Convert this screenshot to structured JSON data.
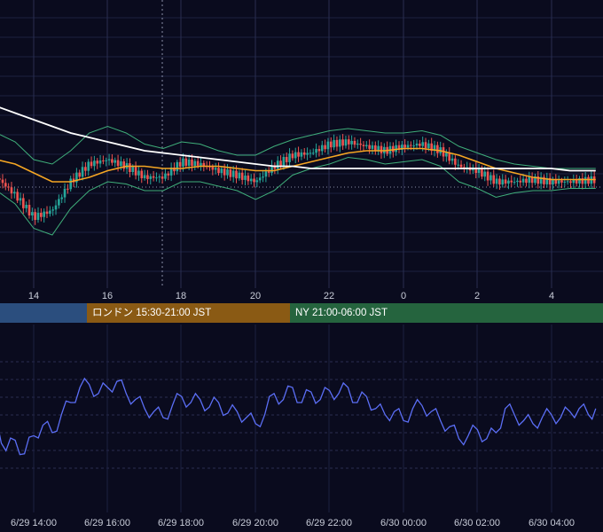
{
  "colors": {
    "background": "#0a0b1e",
    "grid": "#1c2040",
    "up_candle": "#26a69a",
    "down_candle": "#ef5350",
    "sma_long": "#ffffff",
    "sma_mid": "#f5a623",
    "bollinger": "#3fae7a",
    "oscillator": "#5b6ef5",
    "crosshair": "#8a8fa8"
  },
  "sessions": [
    {
      "label": "",
      "color": "#2b4e7e"
    },
    {
      "label": "ロンドン 15:30-21:00 JST",
      "color": "#8a5a14"
    },
    {
      "label": "NY 21:00-06:00 JST",
      "color": "#25643e"
    }
  ],
  "time_axis_top": [
    "14",
    "16",
    "18",
    "20",
    "22",
    "0",
    "2",
    "4"
  ],
  "time_axis_bottom": [
    "6/29 14:00",
    "6/29 16:00",
    "6/29 18:00",
    "6/29 20:00",
    "6/29 22:00",
    "6/30 00:00",
    "6/30 02:00",
    "6/30 04:00"
  ],
  "chart_data": [
    {
      "type": "line",
      "x_hours": [
        13,
        13.5,
        14,
        14.5,
        15,
        15.5,
        16,
        16.5,
        17,
        17.5,
        18,
        18.5,
        19,
        19.5,
        20,
        20.5,
        21,
        21.5,
        22,
        22.5,
        23,
        23.5,
        24,
        24.5,
        25,
        25.5,
        26,
        26.5,
        27,
        27.5,
        28,
        28.5,
        29.2
      ],
      "series": [
        {
          "kind": "close",
          "values": [
            50,
            42,
            32,
            35,
            48,
            56,
            58,
            55,
            50,
            50,
            57,
            56,
            53,
            51,
            48,
            55,
            60,
            61,
            65,
            66,
            64,
            62,
            64,
            65,
            62,
            55,
            53,
            48,
            48,
            49,
            48,
            48,
            49
          ]
        },
        {
          "kind": "sma_long",
          "values": [
            82,
            79,
            76,
            73,
            70,
            68,
            66,
            64,
            62,
            61,
            60,
            59,
            58,
            57,
            56,
            55,
            55,
            54,
            54,
            54,
            54,
            54,
            54,
            54,
            54,
            54,
            54,
            54,
            54,
            54,
            54,
            53,
            53
          ]
        },
        {
          "kind": "sma_mid",
          "values": [
            58,
            56,
            52,
            48,
            48,
            50,
            53,
            55,
            55,
            54,
            54,
            55,
            55,
            54,
            53,
            53,
            55,
            57,
            59,
            61,
            62,
            62,
            63,
            63,
            62,
            60,
            57,
            54,
            52,
            50,
            49,
            49,
            49
          ]
        },
        {
          "kind": "bb_upper",
          "values": [
            70,
            66,
            58,
            56,
            62,
            70,
            73,
            70,
            65,
            63,
            66,
            65,
            62,
            60,
            60,
            64,
            67,
            69,
            71,
            72,
            71,
            70,
            70,
            71,
            69,
            64,
            61,
            58,
            56,
            55,
            54,
            54,
            54
          ]
        },
        {
          "kind": "bb_lower",
          "values": [
            44,
            38,
            27,
            24,
            36,
            44,
            48,
            47,
            44,
            44,
            48,
            48,
            46,
            44,
            40,
            44,
            51,
            54,
            56,
            59,
            58,
            56,
            57,
            58,
            55,
            48,
            45,
            41,
            43,
            44,
            44,
            45,
            45
          ]
        }
      ],
      "ylim": [
        0,
        130
      ]
    },
    {
      "type": "line",
      "x_hours": [
        13,
        13.25,
        13.5,
        13.75,
        14,
        14.25,
        14.5,
        14.75,
        15,
        15.25,
        15.5,
        15.75,
        16,
        16.25,
        16.5,
        16.75,
        17,
        17.25,
        17.5,
        17.75,
        18,
        18.25,
        18.5,
        18.75,
        19,
        19.25,
        19.5,
        19.75,
        20,
        20.25,
        20.5,
        20.75,
        21,
        21.25,
        21.5,
        21.75,
        22,
        22.25,
        22.5,
        22.75,
        23,
        23.25,
        23.5,
        23.75,
        24,
        24.25,
        24.5,
        24.75,
        25,
        25.25,
        25.5,
        25.75,
        26,
        26.25,
        26.5,
        26.75,
        27,
        27.25,
        27.5,
        27.75,
        28,
        28.25,
        28.5,
        28.75,
        29,
        29.2
      ],
      "series": [
        {
          "name": "",
          "values": [
            48,
            28,
            35,
            26,
            38,
            45,
            40,
            52,
            60,
            70,
            72,
            66,
            70,
            74,
            66,
            62,
            56,
            54,
            50,
            58,
            64,
            60,
            62,
            57,
            60,
            53,
            54,
            50,
            46,
            52,
            66,
            62,
            70,
            60,
            67,
            62,
            68,
            66,
            70,
            60,
            64,
            56,
            52,
            54,
            48,
            56,
            58,
            54,
            48,
            44,
            36,
            38,
            42,
            36,
            40,
            56,
            52,
            48,
            46,
            50,
            52,
            50,
            54,
            56,
            52,
            56
          ]
        }
      ],
      "ylim": [
        0,
        100
      ]
    }
  ]
}
